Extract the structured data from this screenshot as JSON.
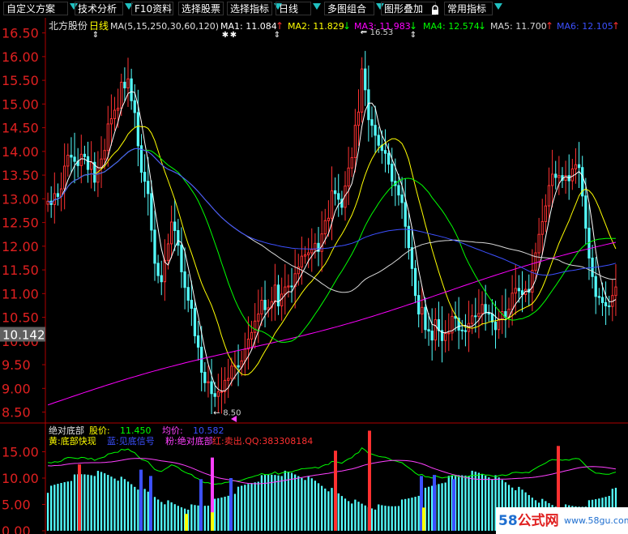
{
  "toolbar": {
    "items": [
      {
        "label": "自定义方案",
        "dropdown": true
      },
      {
        "label": "技术分析",
        "dropdown": true
      },
      {
        "label": "F10资料",
        "dropdown": false
      },
      {
        "label": "选择股票",
        "dropdown": false
      },
      {
        "label": "选择指标",
        "dropdown": true
      },
      {
        "label": "日线",
        "dropdown": true
      },
      {
        "label": "多图组合",
        "dropdown": true
      },
      {
        "label": "图形叠加",
        "dropdown": false
      },
      {
        "label": "常用指标",
        "dropdown": true
      }
    ],
    "lock_icon": "lock-icon",
    "arrow_color": "#20c0c0"
  },
  "main": {
    "stock_name": "北方股份",
    "period": "日线",
    "ma_params": "MA(5,15,250,30,60,120)",
    "ma_values": [
      {
        "label": "MA1:",
        "value": "11.084",
        "arrow": "↑",
        "color": "#ffffff"
      },
      {
        "label": "MA2:",
        "value": "11.829",
        "arrow": "↓",
        "color": "#ffff00"
      },
      {
        "label": "MA3:",
        "value": "11.983",
        "arrow": "↓",
        "color": "#ff00ff"
      },
      {
        "label": "MA4:",
        "value": "12.574",
        "arrow": "↓",
        "color": "#00ff00"
      },
      {
        "label": "MA5:",
        "value": "11.700",
        "arrow": "↑",
        "color": "#d8d8d8"
      },
      {
        "label": "MA6:",
        "value": "12.105",
        "arrow": "↑",
        "color": "#3c50ff"
      }
    ],
    "yaxis": {
      "ticks": [
        8.5,
        9.0,
        9.5,
        10.0,
        10.5,
        11.0,
        11.5,
        12.0,
        12.5,
        13.0,
        13.5,
        14.0,
        14.5,
        15.0,
        15.5,
        16.0,
        16.5
      ],
      "labels": [
        "8.50",
        "9.00",
        "9.50",
        "10.00",
        "10.50",
        "11.00",
        "11.50",
        "12.00",
        "12.50",
        "13.00",
        "13.50",
        "14.00",
        "14.50",
        "15.00",
        "15.50",
        "16.00",
        "16.50"
      ]
    },
    "current_price_label": "10.142",
    "annotation_high": "16.53",
    "annotation_low": "8.50",
    "colors": {
      "up": "#ff3232",
      "down": "#54ffff",
      "axis": "#b00000"
    }
  },
  "sub": {
    "indicator_name": "绝对底部",
    "price_label": "股价:",
    "price_value": "11.450",
    "avg_label": "均价:",
    "avg_value": "10.582",
    "legend": [
      {
        "text": "黄:底部快现",
        "color": "#ffff00"
      },
      {
        "text": "蓝:见底信号",
        "color": "#3c50ff"
      },
      {
        "text": "粉:绝对底部",
        "color": "#ff40ff"
      },
      {
        "text": "红:卖出.QQ:383308184",
        "color": "#ff3030"
      }
    ],
    "yaxis": {
      "ticks": [
        0,
        5,
        10,
        15
      ],
      "labels": [
        "0.00",
        "5.00",
        "10.00",
        "15.00"
      ]
    }
  },
  "watermark": {
    "brand_prefix": "58",
    "brand_text": "公式网",
    "url": "www.58gu.com"
  },
  "chart_data": {
    "type": "candlestick",
    "title": "北方股份 日线",
    "ylim": [
      8.27,
      16.75
    ],
    "price_close": [
      12.95,
      12.88,
      13.11,
      13.05,
      13.21,
      13.69,
      13.92,
      13.88,
      13.79,
      13.7,
      13.94,
      13.89,
      13.62,
      13.77,
      13.35,
      13.66,
      13.84,
      14.02,
      14.58,
      14.69,
      14.87,
      14.91,
      15.46,
      15.34,
      15.53,
      15.07,
      14.82,
      14.12,
      13.56,
      13.37,
      13.11,
      12.34,
      11.64,
      11.38,
      11.25,
      11.7,
      12.05,
      12.51,
      12.33,
      12.02,
      11.46,
      11.13,
      10.86,
      10.69,
      10.11,
      9.87,
      9.34,
      9.12,
      9.14,
      8.89,
      8.83,
      8.93,
      8.93,
      9.17,
      9.21,
      9.47,
      9.48,
      9.45,
      9.58,
      9.83,
      10.04,
      10.18,
      10.42,
      10.57,
      10.86,
      10.66,
      10.7,
      10.83,
      11.18,
      10.74,
      10.99,
      11.14,
      11.16,
      11.15,
      11.42,
      11.56,
      11.79,
      11.82,
      11.86,
      11.93,
      12.06,
      11.89,
      12.26,
      12.54,
      12.59,
      13.17,
      13.11,
      12.99,
      12.82,
      13.27,
      13.65,
      13.87,
      14.55,
      14.83,
      15.74,
      15.3,
      14.67,
      14.55,
      14.34,
      14.13,
      14.02,
      13.96,
      13.73,
      13.37,
      13.28,
      13.08,
      12.92,
      12.42,
      11.97,
      11.53,
      10.96,
      10.57,
      10.71,
      10.24,
      10.21,
      10.02,
      10.45,
      10.22,
      10.01,
      10.16,
      10.17,
      10.52,
      10.48,
      10.23,
      10.22,
      10.2,
      10.37,
      10.53,
      10.52,
      10.58,
      10.77,
      10.59,
      10.57,
      10.4,
      10.24,
      10.46,
      10.62,
      10.5,
      10.67,
      11.01,
      11.11,
      11.06,
      10.98,
      11.09,
      11.03,
      11.49,
      11.86,
      12.25,
      12.52,
      12.85,
      13.28,
      13.52,
      13.45,
      13.49,
      13.39,
      13.49,
      13.38,
      13.63,
      13.72,
      13.66,
      13.06,
      12.38,
      11.75,
      11.36,
      10.94,
      10.92,
      10.81,
      10.74,
      10.73,
      10.96,
      11.14
    ],
    "yaxis_labels": [
      "8.50",
      "9.00",
      "9.50",
      "10.00",
      "10.50",
      "11.00",
      "11.50",
      "12.00",
      "12.50",
      "13.00",
      "13.50",
      "14.00",
      "14.50",
      "15.00",
      "15.50",
      "16.00",
      "16.50"
    ],
    "series": [
      {
        "name": "MA1",
        "value": 11.084
      },
      {
        "name": "MA2",
        "value": 11.829
      },
      {
        "name": "MA3",
        "value": 11.983
      },
      {
        "name": "MA4",
        "value": 12.574
      },
      {
        "name": "MA5",
        "value": 11.7
      },
      {
        "name": "MA6",
        "value": 12.105
      }
    ],
    "ma_colors": [
      "#ffffff",
      "#ffff00",
      "#ff00ff",
      "#00ff00",
      "#d8d8d8",
      "#3c50ff"
    ],
    "annotations": [
      {
        "text": "16.53",
        "value": 16.53
      },
      {
        "text": "8.50",
        "value": 8.5
      }
    ],
    "sub_chart": {
      "type": "bar",
      "title": "绝对底部",
      "ylim": [
        0,
        18
      ],
      "yaxis_labels": [
        "0.00",
        "5.00",
        "10.00",
        "15.00"
      ],
      "signal_bars": [
        {
          "color": "#ff3030",
          "value": 12.6
        },
        {
          "color": "#3c50ff",
          "value": 11.6
        },
        {
          "color": "#3c50ff",
          "value": 10.4
        },
        {
          "color": "#ffff00",
          "value": 3.2
        },
        {
          "color": "#3c50ff",
          "value": 9.8
        },
        {
          "color": "#ff40ff",
          "value": 13.9
        },
        {
          "color": "#ffff00",
          "value": 3.5
        },
        {
          "color": "#3c50ff",
          "value": 10.0
        },
        {
          "color": "#ff3030",
          "value": 15.2
        },
        {
          "color": "#ff3030",
          "value": 19.0
        },
        {
          "color": "#3c50ff",
          "value": 10.4
        },
        {
          "color": "#ffff00",
          "value": 4.4
        },
        {
          "color": "#3c50ff",
          "value": 10.6
        },
        {
          "color": "#3c50ff",
          "value": 9.8
        },
        {
          "color": "#ff3030",
          "value": 16.1
        }
      ]
    }
  }
}
